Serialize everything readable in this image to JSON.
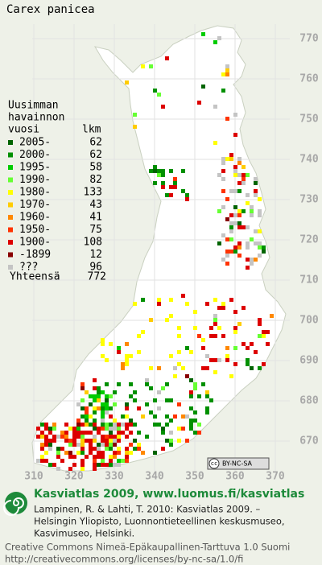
{
  "title": "Carex panicea",
  "legend": {
    "header": [
      "Uusimman",
      "havainnon",
      "vuosi"
    ],
    "count_header": "lkm",
    "entries": [
      {
        "label": "2005-",
        "count": 62,
        "color": "#006400"
      },
      {
        "label": "2000-",
        "count": 62,
        "color": "#009000"
      },
      {
        "label": "1995-",
        "count": 58,
        "color": "#00cc00"
      },
      {
        "label": "1990-",
        "count": 82,
        "color": "#66ff33"
      },
      {
        "label": "1980-",
        "count": 133,
        "color": "#ffff00"
      },
      {
        "label": "1970-",
        "count": 43,
        "color": "#ffcc00"
      },
      {
        "label": "1960-",
        "count": 41,
        "color": "#ff8800"
      },
      {
        "label": "1950-",
        "count": 75,
        "color": "#ff3300"
      },
      {
        "label": "1900-",
        "count": 108,
        "color": "#dd0000"
      },
      {
        "label": "-1899",
        "count": 12,
        "color": "#880000"
      },
      {
        "label": "???",
        "count": 96,
        "color": "#c4c4c4"
      }
    ],
    "total_label": "Yhteensä",
    "total": 772
  },
  "grid": {
    "xticks": [
      310,
      320,
      330,
      340,
      350,
      360,
      370
    ],
    "yticks": [
      770,
      760,
      750,
      740,
      730,
      720,
      710,
      700,
      690,
      680,
      670
    ]
  },
  "cc_badge": {
    "icon": "cc",
    "text": "BY-NC-SA"
  },
  "footer": {
    "heading": "Kasviatlas 2009, www.luomus.fi/kasviatlas",
    "citation": [
      "Lampinen, R. & Lahti, T. 2010: Kasviatlas 2009. –",
      "Helsingin Yliopisto, Luonnontieteellinen keskusmuseo,",
      "Kasvimuseo, Helsinki."
    ],
    "license": [
      "Creative Commons Nimeä-Epäkaupallinen-Tarttuva 1.0 Suomi",
      "http://creativecommons.org/licenses/by-nc-sa/1.0/fi"
    ]
  }
}
